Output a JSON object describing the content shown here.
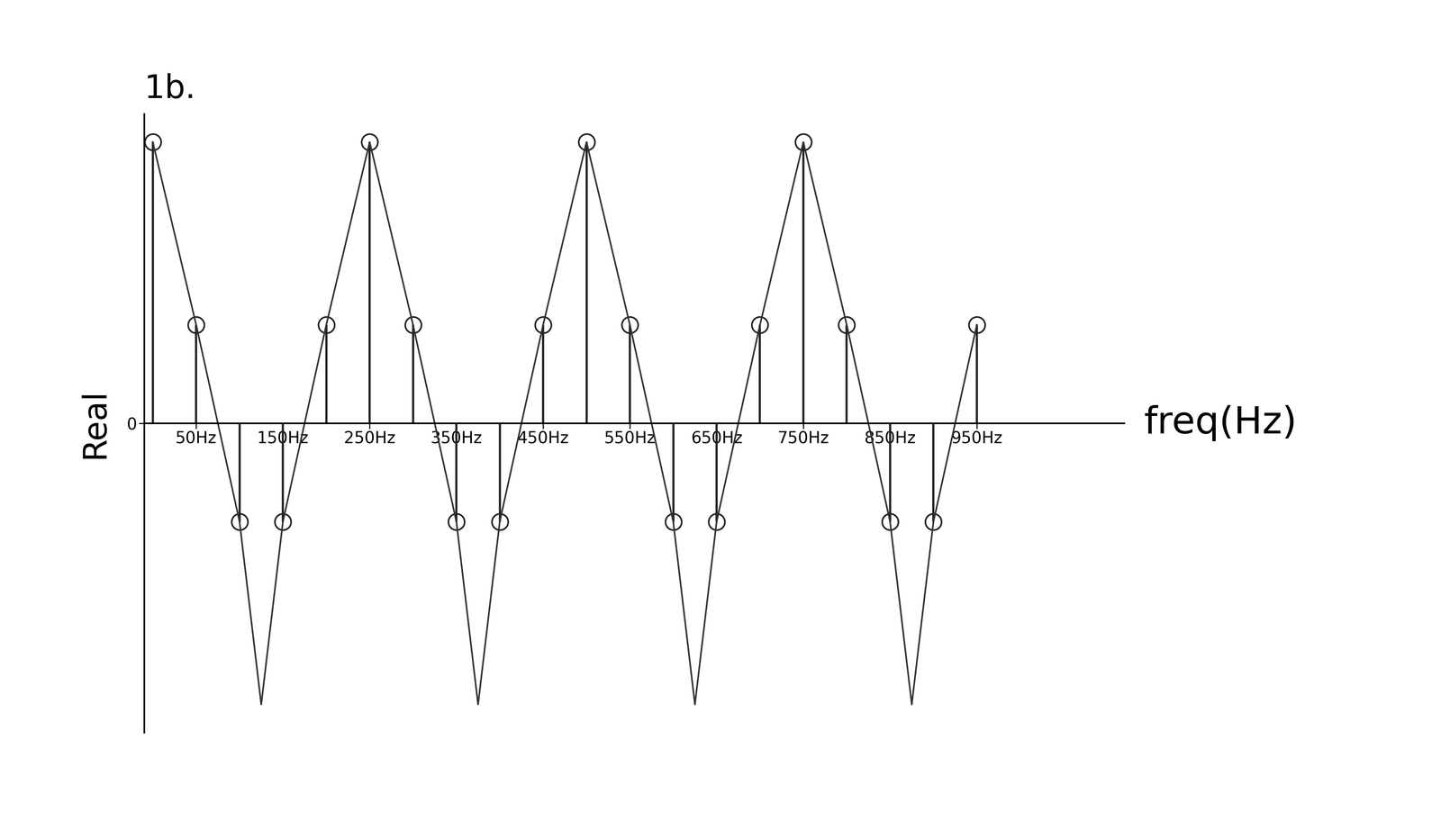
{
  "chart_data": {
    "type": "stem",
    "title": "1b.",
    "x_label": "freq(Hz)",
    "y_label": "Real",
    "xlim": [
      -10,
      1120
    ],
    "ylim": [
      -1.1,
      1.1
    ],
    "xticks": [
      {
        "value": 50,
        "label": "50Hz"
      },
      {
        "value": 150,
        "label": "150Hz"
      },
      {
        "value": 250,
        "label": "250Hz"
      },
      {
        "value": 350,
        "label": "350Hz"
      },
      {
        "value": 450,
        "label": "450Hz"
      },
      {
        "value": 550,
        "label": "550Hz"
      },
      {
        "value": 650,
        "label": "650Hz"
      },
      {
        "value": 750,
        "label": "750Hz"
      },
      {
        "value": 850,
        "label": "850Hz"
      },
      {
        "value": 950,
        "label": "950Hz"
      }
    ],
    "yticks": [
      0
    ],
    "grid": false,
    "series": [
      {
        "type": "stem",
        "color": "#222222",
        "marker": "o",
        "x": [
          0,
          50,
          100,
          150,
          200,
          250,
          300,
          350,
          400,
          450,
          500,
          550,
          600,
          650,
          700,
          750,
          800,
          850,
          900,
          950
        ],
        "values": [
          1,
          0.35,
          -0.35,
          -0.35,
          0.35,
          1,
          0.35,
          -0.35,
          -0.35,
          0.35,
          1,
          0.35,
          -0.35,
          -0.35,
          0.35,
          1,
          0.35,
          -0.35,
          -0.35,
          0.35
        ]
      },
      {
        "type": "line",
        "color": "#333333",
        "line_style": "solid",
        "x": [
          0,
          50,
          100,
          125,
          150,
          200,
          250,
          300,
          350,
          375,
          400,
          450,
          500,
          550,
          600,
          625,
          650,
          700,
          750,
          800,
          850,
          875,
          900,
          950
        ],
        "values": [
          1,
          0.35,
          -0.35,
          -1,
          -0.35,
          0.35,
          1,
          0.35,
          -0.35,
          -1,
          -0.35,
          0.35,
          1,
          0.35,
          -0.35,
          -1,
          -0.35,
          0.35,
          1,
          0.35,
          -0.35,
          -1,
          -0.35,
          0.35
        ]
      }
    ]
  }
}
